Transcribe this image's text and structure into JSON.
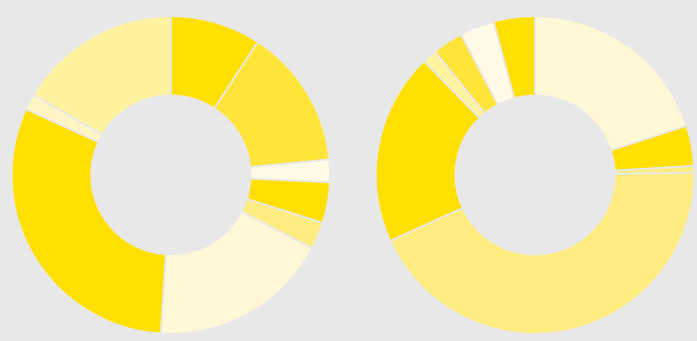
{
  "chart_data": [
    {
      "type": "pie",
      "variant": "donut",
      "title": "",
      "series": [
        {
          "values": [
            10.0,
            15.5,
            2.5,
            4.5,
            3.0,
            20.0,
            33.5,
            1.8,
            18.0
          ],
          "colors": [
            "#ffe000",
            "#ffe53a",
            "#fffbe6",
            "#ffe000",
            "#ffec80",
            "#fff8d6",
            "#ffe000",
            "#fff5c4",
            "#fff3a0"
          ]
        }
      ]
    },
    {
      "type": "pie",
      "variant": "donut",
      "title": "",
      "series": [
        {
          "values": [
            20.5,
            4.2,
            0.7,
            44.5,
            20.0,
            1.5,
            3.2,
            3.6,
            4.3
          ],
          "colors": [
            "#fff8d6",
            "#ffe000",
            "#ffec80",
            "#ffec80",
            "#ffe000",
            "#fff3a0",
            "#ffe53a",
            "#fffbe6",
            "#ffe000"
          ]
        }
      ]
    }
  ]
}
